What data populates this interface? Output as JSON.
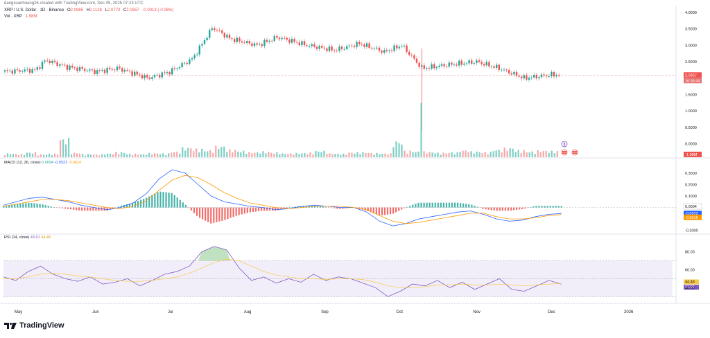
{
  "header": {
    "credit": "dangxuanhoang26 created with TradingView.com, Dec 05, 2025 07:23 UTC",
    "symbol": "XRP / U.S. Dollar · 1D · Binance",
    "ohlc": {
      "o_label": "O",
      "o": "2.0965",
      "h_label": "H",
      "h": "2.1128",
      "l_label": "L",
      "l": "2.0773",
      "c_label": "C",
      "c": "2.0957",
      "chg": "-0.0013 (-0.06%)"
    },
    "vol_label": "Vol · XRP",
    "vol_value": "1.98M"
  },
  "colors": {
    "up": "#26a69a",
    "down": "#ef5350",
    "macd_line": "#2962ff",
    "signal_line": "#ff9800",
    "rsi_line": "#7e57c2",
    "rsi_ma": "#f7c94a",
    "rsi_band": "#ede7f6"
  },
  "macd_label": "MACD (12, 26, close)",
  "macd_values": {
    "hist": "0.0094",
    "macd": "-0.0522",
    "signal": "-0.0616"
  },
  "rsi_label": "RSI (14, close)",
  "rsi_values": {
    "rsi": "43.91",
    "ma": "44.48"
  },
  "logo": {
    "text": "TradingView"
  },
  "chart_data": [
    {
      "type": "candlestick",
      "title": "XRP / U.S. Dollar · 1D · Binance",
      "x_ticks": [
        "May",
        "Jun",
        "Jul",
        "Aug",
        "Sep",
        "Oct",
        "Nov",
        "Dec",
        "2026"
      ],
      "y_ticks": [
        "0.0000",
        "0.5000",
        "1.0000",
        "1.5000",
        "2.5000",
        "3.0000",
        "3.5000",
        "4.0000"
      ],
      "ylim": [
        -0.05,
        4.0
      ],
      "last_price": "2.0957",
      "countdown": "16:36:44",
      "approx_close_path": [
        {
          "x": "2025-04-25",
          "y": 2.2
        },
        {
          "x": "2025-05-08",
          "y": 2.25
        },
        {
          "x": "2025-05-12",
          "y": 2.55
        },
        {
          "x": "2025-05-20",
          "y": 2.35
        },
        {
          "x": "2025-06-01",
          "y": 2.2
        },
        {
          "x": "2025-06-10",
          "y": 2.3
        },
        {
          "x": "2025-06-22",
          "y": 2.0
        },
        {
          "x": "2025-07-01",
          "y": 2.2
        },
        {
          "x": "2025-07-10",
          "y": 2.6
        },
        {
          "x": "2025-07-18",
          "y": 3.55
        },
        {
          "x": "2025-07-25",
          "y": 3.2
        },
        {
          "x": "2025-08-05",
          "y": 3.0
        },
        {
          "x": "2025-08-13",
          "y": 3.25
        },
        {
          "x": "2025-08-25",
          "y": 3.0
        },
        {
          "x": "2025-09-05",
          "y": 2.85
        },
        {
          "x": "2025-09-15",
          "y": 3.05
        },
        {
          "x": "2025-09-25",
          "y": 2.8
        },
        {
          "x": "2025-10-02",
          "y": 3.0
        },
        {
          "x": "2025-10-10",
          "y": 2.3
        },
        {
          "x": "2025-10-20",
          "y": 2.4
        },
        {
          "x": "2025-11-01",
          "y": 2.5
        },
        {
          "x": "2025-11-10",
          "y": 2.3
        },
        {
          "x": "2025-11-20",
          "y": 2.0
        },
        {
          "x": "2025-12-01",
          "y": 2.1
        },
        {
          "x": "2025-12-05",
          "y": 2.0957
        }
      ]
    },
    {
      "type": "bar",
      "title": "Vol · XRP",
      "last_value": "1.98M",
      "approx_values_millions": [
        1.2,
        1.0,
        1.5,
        0.9,
        1.1,
        5.8,
        1.4,
        1.0,
        0.9,
        1.2,
        1.6,
        1.1,
        1.0,
        1.3,
        1.2,
        1.8,
        3.0,
        2.6,
        2.2,
        3.5,
        2.4,
        2.0,
        1.6,
        1.8,
        1.5,
        1.2,
        1.3,
        1.4,
        2.0,
        1.2,
        1.1,
        1.5,
        1.6,
        1.3,
        1.2,
        5.0,
        2.0,
        1.8,
        1.6,
        1.4,
        1.5,
        2.2,
        1.8,
        1.6,
        2.4,
        2.9,
        2.2,
        1.8,
        2.1,
        1.98
      ]
    },
    {
      "type": "line",
      "title": "MACD (12, 26, close)",
      "y_ticks": [
        "0.3000",
        "0.2000",
        "0.1000",
        "-0.2000"
      ],
      "ylim": [
        -0.22,
        0.36
      ],
      "series": [
        {
          "name": "MACD",
          "values": [
            0.02,
            0.05,
            0.08,
            0.09,
            0.07,
            0.05,
            0.02,
            0.0,
            -0.02,
            0.0,
            0.04,
            0.12,
            0.25,
            0.33,
            0.3,
            0.2,
            0.1,
            0.05,
            0.03,
            0.01,
            0.0,
            -0.02,
            -0.01,
            0.01,
            0.02,
            0.01,
            0.0,
            0.0,
            -0.04,
            -0.12,
            -0.16,
            -0.14,
            -0.1,
            -0.08,
            -0.06,
            -0.04,
            -0.03,
            -0.06,
            -0.1,
            -0.12,
            -0.11,
            -0.08,
            -0.06,
            -0.0522
          ]
        },
        {
          "name": "Signal",
          "values": [
            0.01,
            0.03,
            0.05,
            0.07,
            0.07,
            0.06,
            0.04,
            0.02,
            0.0,
            -0.01,
            0.01,
            0.06,
            0.15,
            0.24,
            0.28,
            0.26,
            0.2,
            0.13,
            0.08,
            0.04,
            0.02,
            0.0,
            -0.01,
            0.0,
            0.01,
            0.01,
            0.01,
            0.0,
            -0.02,
            -0.07,
            -0.12,
            -0.14,
            -0.13,
            -0.11,
            -0.09,
            -0.07,
            -0.05,
            -0.05,
            -0.08,
            -0.1,
            -0.1,
            -0.09,
            -0.07,
            -0.0616
          ]
        }
      ]
    },
    {
      "type": "line",
      "title": "RSI (14, close)",
      "y_ticks": [
        "80.00",
        "60.00",
        "40.00"
      ],
      "ylim": [
        24,
        92
      ],
      "bands": [
        30,
        70
      ],
      "series": [
        {
          "name": "RSI",
          "values": [
            52,
            48,
            58,
            64,
            55,
            50,
            47,
            52,
            44,
            46,
            50,
            42,
            48,
            55,
            58,
            64,
            80,
            86,
            82,
            62,
            48,
            52,
            45,
            50,
            46,
            55,
            48,
            52,
            50,
            45,
            40,
            30,
            36,
            44,
            42,
            48,
            40,
            46,
            38,
            44,
            50,
            38,
            36,
            42,
            48,
            43.91
          ]
        },
        {
          "name": "RSI-based MA",
          "values": [
            50,
            50,
            52,
            55,
            56,
            55,
            53,
            52,
            50,
            48,
            47,
            47,
            48,
            50,
            52,
            56,
            62,
            68,
            72,
            70,
            64,
            58,
            54,
            52,
            50,
            50,
            49,
            50,
            50,
            49,
            46,
            42,
            40,
            40,
            41,
            43,
            43,
            44,
            43,
            43,
            44,
            43,
            42,
            43,
            44,
            44.48
          ]
        }
      ]
    }
  ]
}
